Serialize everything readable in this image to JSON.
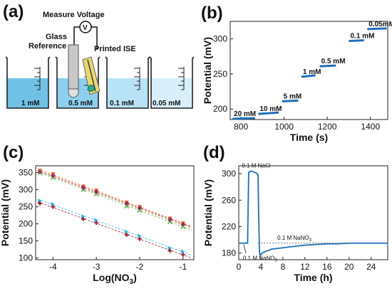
{
  "panels": {
    "a": "(a)",
    "b": "(b)",
    "c": "(c)",
    "d": "(d)"
  },
  "diagram": {
    "measure_label": "Measure Voltage",
    "voltmeter": "V",
    "glass_reference": [
      "Glass",
      "Reference"
    ],
    "printed_ise": "Printed ISE",
    "beakers": [
      "1 mM",
      "0.5 mM",
      "0.1 mM",
      "0.05 mM"
    ],
    "colors": {
      "solution": [
        "#6fc2e6",
        "#8ccfee",
        "#b8e2f5",
        "#d8eff9"
      ],
      "electrode_tip": "#2eaa8a",
      "ise": "#e8d770"
    }
  },
  "chart_data": [
    {
      "type": "line",
      "panel": "b",
      "xlabel": "Time (s)",
      "ylabel": "Potential (mV)",
      "xlim": [
        750,
        1480
      ],
      "ylim": [
        185,
        325
      ],
      "xticks": [
        800,
        1000,
        1200,
        1400
      ],
      "yticks": [
        200,
        250,
        300
      ],
      "series": [
        {
          "label": "20 mM",
          "x": [
            760,
            865
          ],
          "y": [
            186,
            187
          ]
        },
        {
          "label": "10 mM",
          "x": [
            880,
            975
          ],
          "y": [
            193,
            195
          ]
        },
        {
          "label": "5 mM",
          "x": [
            990,
            1065
          ],
          "y": [
            211,
            212
          ]
        },
        {
          "label": "1 mM",
          "x": [
            1080,
            1145
          ],
          "y": [
            246,
            248
          ]
        },
        {
          "label": "0.5 mM",
          "x": [
            1165,
            1240
          ],
          "y": [
            261,
            262
          ]
        },
        {
          "label": "0.1 mM",
          "x": [
            1300,
            1370
          ],
          "y": [
            297,
            298
          ]
        },
        {
          "label": "0.05mM",
          "x": [
            1385,
            1475
          ],
          "y": [
            314,
            315
          ]
        }
      ],
      "color": "#1f6fb6"
    },
    {
      "type": "scatter",
      "panel": "c",
      "xlabel": "Log(NO3)",
      "ylabel": "Potential (mV)",
      "xlim": [
        -4.4,
        -0.75
      ],
      "ylim": [
        95,
        370
      ],
      "xticks": [
        -4,
        -3,
        -2,
        -1
      ],
      "yticks": [
        100,
        150,
        200,
        250,
        300,
        350
      ],
      "x": [
        -4.3,
        -4,
        -3.3,
        -3,
        -2.3,
        -2,
        -1.3,
        -1
      ],
      "series": [
        {
          "color": "#e8622a",
          "marker": "square",
          "y": [
            356,
            346,
            310,
            298,
            263,
            250,
            216,
            202
          ]
        },
        {
          "color": "#e3b52a",
          "marker": "circle",
          "y": [
            353,
            340,
            303,
            292,
            257,
            246,
            210,
            198
          ]
        },
        {
          "color": "#6aa84f",
          "marker": "x",
          "y": [
            350,
            336,
            300,
            288,
            252,
            240,
            206,
            192
          ]
        },
        {
          "color": "#9a2a6a",
          "marker": "diamond",
          "y": [
            352,
            341,
            306,
            294,
            260,
            247,
            213,
            199
          ]
        },
        {
          "color": "#3fb8e8",
          "marker": "triangle",
          "y": [
            268,
            258,
            222,
            211,
            177,
            165,
            129,
            119
          ]
        },
        {
          "color": "#9b1b30",
          "marker": "plus",
          "y": [
            260,
            250,
            214,
            203,
            168,
            156,
            121,
            110
          ]
        }
      ]
    },
    {
      "type": "line",
      "panel": "d",
      "xlabel": "Time (h)",
      "ylabel": "Potential (mV)",
      "xlim": [
        0,
        27
      ],
      "ylim": [
        170,
        312
      ],
      "xticks": [
        0,
        4,
        8,
        12,
        16,
        20,
        24
      ],
      "yticks": [
        180,
        220,
        260,
        300
      ],
      "baseline": 195,
      "series": [
        {
          "color": "#1f6fb6",
          "x": [
            0,
            1.2,
            1.6,
            1.8,
            2.2,
            2.6,
            3.2,
            3.5,
            3.6,
            3.75,
            3.9,
            4.2,
            5,
            6,
            8,
            10,
            12,
            14,
            16,
            18,
            20,
            22,
            24,
            26,
            27
          ],
          "y": [
            195,
            195,
            195,
            302,
            304,
            303,
            301,
            298,
            240,
            182,
            176,
            180,
            183,
            186,
            188,
            190,
            192,
            193,
            194,
            194,
            195,
            195,
            195,
            195,
            195
          ]
        }
      ],
      "annotations": {
        "nacl": "0.1 M NaCl",
        "nano3_top": "0.1 M NaNO",
        "nano3_bottom": "0.1 M NaNO",
        "subscript": "3"
      }
    }
  ]
}
